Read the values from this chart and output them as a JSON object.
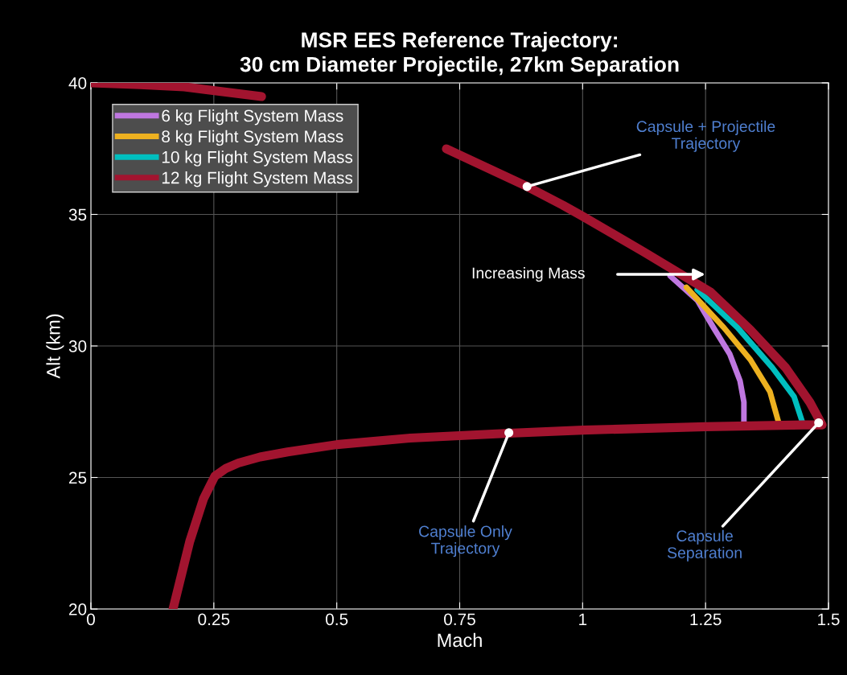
{
  "chart_data": {
    "type": "line",
    "title": "MSR EES Reference Trajectory:\n30 cm Diameter Projectile, 27km Separation",
    "xlabel": "Mach",
    "ylabel": "Alt (km)",
    "xlim": [
      0,
      1.5
    ],
    "ylim": [
      20,
      40
    ],
    "xticks": [
      0,
      0.25,
      0.5,
      0.75,
      1,
      1.25,
      1.5
    ],
    "yticks": [
      20,
      25,
      30,
      35,
      40
    ],
    "grid": true,
    "legend": "top left",
    "marker": "none",
    "line_style": "solid",
    "series": [
      {
        "name": "6 kg Flight System Mass",
        "color": "#bf77e0",
        "x": [
          1.178,
          1.233,
          1.266,
          1.299,
          1.32,
          1.328,
          1.328
        ],
        "values": [
          32.66,
          31.74,
          30.7,
          29.7,
          28.68,
          27.86,
          27.08
        ]
      },
      {
        "name": "8 kg Flight System Mass",
        "color": "#edb120",
        "x": [
          1.211,
          1.287,
          1.341,
          1.381,
          1.399
        ],
        "values": [
          32.23,
          30.7,
          29.48,
          28.26,
          27.06
        ]
      },
      {
        "name": "10 kg Flight System Mass",
        "color": "#00bfbf",
        "x": [
          1.233,
          1.315,
          1.386,
          1.43,
          1.448
        ],
        "values": [
          32.14,
          30.7,
          29.17,
          28.07,
          27.04
        ]
      },
      {
        "name": "12 kg Flight System Mass",
        "color": "#a2142f",
        "x": [
          0,
          0.1,
          0.19,
          0.347,
          0.5,
          0.723,
          0.887,
          0.96,
          0.998,
          1.124,
          1.26,
          1.341,
          1.413,
          1.462,
          1.487,
          1.45,
          1.25,
          1.0,
          0.85,
          0.65,
          0.5,
          0.4,
          0.344,
          0.3,
          0.275,
          0.252,
          0.229,
          0.201,
          0.167
        ],
        "values": [
          40,
          39.93,
          39.85,
          39.48,
          null,
          37.49,
          36.06,
          35.35,
          34.95,
          33.58,
          32.05,
          30.61,
          29.17,
          27.86,
          27.0,
          27.0,
          26.93,
          26.8,
          26.68,
          26.5,
          26.25,
          25.97,
          25.78,
          25.55,
          25.35,
          25.05,
          24.19,
          22.57,
          20.0
        ]
      }
    ],
    "annotations": [
      {
        "text": "Capsule + Projectile\nTrajectory",
        "x": 0.887,
        "y": 36.06
      },
      "Increasing Mass",
      {
        "text": "Capsule Only\nTrajectory",
        "x": 0.85,
        "y": 26.7
      },
      {
        "text": "Capsule\nSeparation",
        "x": 1.48,
        "y": 27.08
      }
    ]
  }
}
